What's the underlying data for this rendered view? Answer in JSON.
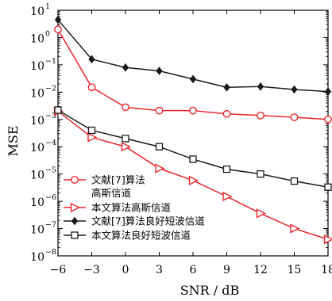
{
  "chart_data": {
    "type": "line",
    "title": "",
    "xlabel": "SNR / dB",
    "ylabel": "MSE",
    "x": [
      -6,
      -3,
      0,
      3,
      6,
      9,
      12,
      15,
      18
    ],
    "xlim": [
      -6,
      18
    ],
    "xticks": [
      -6,
      -3,
      0,
      3,
      6,
      9,
      12,
      15,
      18
    ],
    "y_scale": "log",
    "ylim_exponent": [
      -8,
      1
    ],
    "ytick_base": "10",
    "ytick_exponents": [
      -8,
      -7,
      -6,
      -5,
      -4,
      -3,
      -2,
      -1,
      0,
      1
    ],
    "grid": false,
    "legend_position": "bottom-left",
    "series": [
      {
        "name": "文献[7]算法",
        "name_line2": "高斯信道",
        "color": "#e8262a",
        "marker": "circle",
        "values": [
          2.0,
          0.015,
          0.0028,
          0.0021,
          0.0021,
          0.0016,
          0.0014,
          0.0012,
          0.001
        ]
      },
      {
        "name": "本文算法高斯信道",
        "color": "#e8262a",
        "marker": "triangle-right",
        "values": [
          0.002,
          0.00022,
          0.0001,
          1.6e-05,
          5.8e-06,
          1.5e-06,
          3.6e-07,
          1e-07,
          4e-08
        ]
      },
      {
        "name": "文献[7]算法良好短波信道",
        "color": "#1a1a1a",
        "marker": "diamond",
        "values": [
          4.5,
          0.16,
          0.08,
          0.06,
          0.03,
          0.015,
          0.016,
          0.0125,
          0.0105
        ]
      },
      {
        "name": "本文算法良好短波信道",
        "color": "#1a1a1a",
        "marker": "square",
        "values": [
          0.0022,
          0.0004,
          0.0002,
          0.0001,
          3.5e-05,
          1.5e-05,
          1e-05,
          5.5e-06,
          3.3e-06
        ]
      }
    ]
  }
}
